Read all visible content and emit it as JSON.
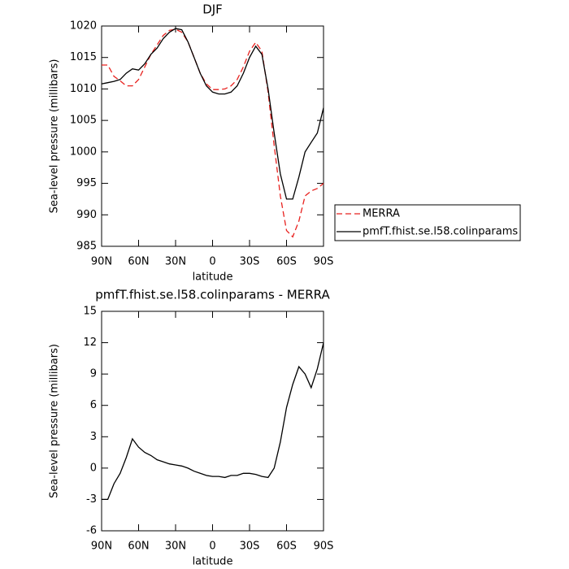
{
  "chart_data": [
    {
      "type": "line",
      "title": "DJF",
      "x_label": "latitude",
      "y_label": "Sea-level pressure (millibars)",
      "x": [
        90,
        85,
        80,
        75,
        70,
        65,
        60,
        55,
        50,
        45,
        40,
        35,
        30,
        25,
        20,
        15,
        10,
        5,
        0,
        -5,
        -10,
        -15,
        -20,
        -25,
        -30,
        -35,
        -40,
        -45,
        -50,
        -55,
        -60,
        -65,
        -70,
        -75,
        -80,
        -85,
        -90
      ],
      "xlim": [
        90,
        -90
      ],
      "xticks": [
        {
          "value": 90,
          "label": "90N"
        },
        {
          "value": 60,
          "label": "60N"
        },
        {
          "value": 30,
          "label": "30N"
        },
        0,
        {
          "value": -30,
          "label": "30S"
        },
        {
          "value": -60,
          "label": "60S"
        },
        {
          "value": -90,
          "label": "90S"
        }
      ],
      "ylim": [
        985,
        1020
      ],
      "yticks": [
        985,
        990,
        995,
        1000,
        1005,
        1010,
        1015,
        1020
      ],
      "legend": "right",
      "series": [
        {
          "name": "MERRA",
          "color": "#e8211e",
          "line_style": "dashed",
          "values": [
            1013.8,
            1013.8,
            1012,
            1011.3,
            1010.5,
            1010.5,
            1011.5,
            1013.5,
            1015.5,
            1017,
            1018.5,
            1019.3,
            1019.5,
            1019,
            1017.5,
            1015,
            1012.5,
            1010.8,
            1009.9,
            1009.9,
            1010,
            1010.5,
            1011.5,
            1013.5,
            1016,
            1017.4,
            1016,
            1009.5,
            1001,
            993,
            987.5,
            986.5,
            989,
            993,
            993.8,
            994.2,
            995
          ]
        },
        {
          "name": "pmfT.fhist.se.l58.colinparams",
          "color": "#000000",
          "line_style": "solid",
          "values": [
            1010.8,
            1011,
            1011.2,
            1011.5,
            1012.5,
            1013.2,
            1013,
            1014,
            1015.5,
            1016.5,
            1018,
            1019,
            1019.6,
            1019.4,
            1017.5,
            1015,
            1012.5,
            1010.5,
            1009.5,
            1009.2,
            1009.2,
            1009.5,
            1010.5,
            1012.5,
            1015,
            1016.8,
            1015.5,
            1010,
            1003,
            996.5,
            992.5,
            992.5,
            996,
            1000,
            1001.5,
            1003,
            1007
          ]
        }
      ]
    },
    {
      "type": "line",
      "title": "pmfT.fhist.se.l58.colinparams - MERRA",
      "x_label": "latitude",
      "y_label": "Sea-level pressure (millibars)",
      "x": [
        90,
        85,
        80,
        75,
        70,
        65,
        60,
        55,
        50,
        45,
        40,
        35,
        30,
        25,
        20,
        15,
        10,
        5,
        0,
        -5,
        -10,
        -15,
        -20,
        -25,
        -30,
        -35,
        -40,
        -45,
        -50,
        -55,
        -60,
        -65,
        -70,
        -75,
        -80,
        -85,
        -90
      ],
      "xlim": [
        90,
        -90
      ],
      "xticks": [
        {
          "value": 90,
          "label": "90N"
        },
        {
          "value": 60,
          "label": "60N"
        },
        {
          "value": 30,
          "label": "30N"
        },
        0,
        {
          "value": -30,
          "label": "30S"
        },
        {
          "value": -60,
          "label": "60S"
        },
        {
          "value": -90,
          "label": "90S"
        }
      ],
      "ylim": [
        -6,
        15
      ],
      "yticks": [
        -6,
        -3,
        0,
        3,
        6,
        9,
        12,
        15
      ],
      "series": [
        {
          "color": "#000000",
          "line_style": "solid",
          "values": [
            -3,
            -3,
            -1.5,
            -0.5,
            1,
            2.8,
            2,
            1.5,
            1.2,
            0.8,
            0.6,
            0.4,
            0.3,
            0.2,
            0,
            -0.3,
            -0.5,
            -0.7,
            -0.8,
            -0.8,
            -0.9,
            -0.7,
            -0.7,
            -0.5,
            -0.5,
            -0.6,
            -0.8,
            -0.9,
            0,
            2.5,
            5.8,
            8,
            9.7,
            9,
            7.7,
            9.5,
            12
          ]
        }
      ]
    }
  ]
}
